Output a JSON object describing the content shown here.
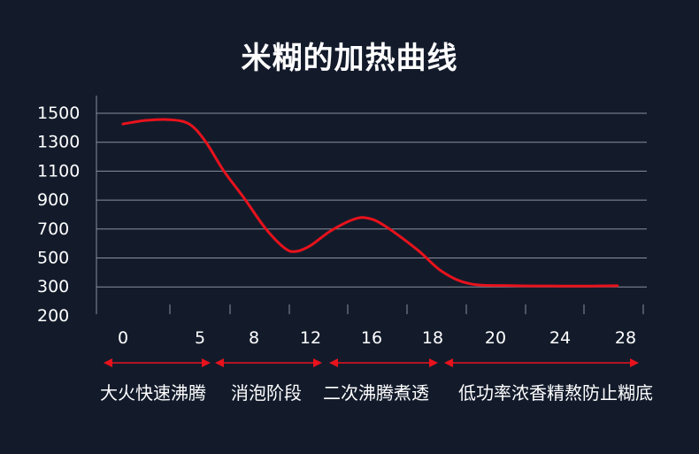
{
  "chart_data": {
    "type": "line",
    "title": "米糊的加热曲线",
    "xlabel": "",
    "ylabel": "",
    "y_ticks": [
      1500,
      1300,
      1100,
      900,
      700,
      500,
      300,
      200
    ],
    "x_ticks": [
      0,
      5,
      8,
      12,
      16,
      18,
      20,
      24,
      28
    ],
    "grid": "horizontal",
    "series": [
      {
        "color": "#e8121c",
        "points": [
          [
            0,
            1420
          ],
          [
            1.5,
            1445
          ],
          [
            3,
            1450
          ],
          [
            4.3,
            1420
          ],
          [
            5.3,
            1300
          ],
          [
            6.3,
            1100
          ],
          [
            7.5,
            900
          ],
          [
            8.8,
            700
          ],
          [
            10.2,
            560
          ],
          [
            11,
            540
          ],
          [
            12,
            580
          ],
          [
            13.3,
            680
          ],
          [
            14.8,
            760
          ],
          [
            15.7,
            770
          ],
          [
            16.4,
            720
          ],
          [
            17.5,
            550
          ],
          [
            18.3,
            400
          ],
          [
            19.2,
            315
          ],
          [
            21,
            303
          ],
          [
            24,
            300
          ],
          [
            26,
            300
          ],
          [
            27.5,
            302
          ]
        ]
      }
    ],
    "phases": [
      {
        "label": "大火快速沸腾",
        "x_start": 0,
        "x_end": 5
      },
      {
        "label": "消泡阶段",
        "x_start": 5,
        "x_end": 12
      },
      {
        "label": "二次沸腾煮透",
        "x_start": 12,
        "x_end": 18
      },
      {
        "label": "低功率浓香精熬防止糊底",
        "x_start": 18,
        "x_end": 28
      }
    ],
    "arrow_color": "#e8121c"
  }
}
